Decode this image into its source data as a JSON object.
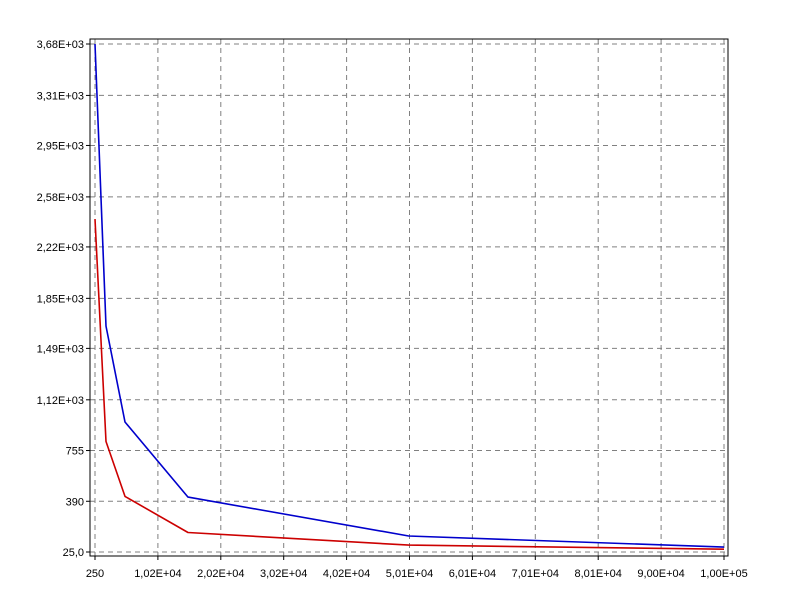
{
  "chart_data": {
    "type": "line",
    "title": "",
    "xlabel": "",
    "ylabel": "",
    "xlim": [
      250,
      100000
    ],
    "ylim": [
      25,
      3680
    ],
    "grid": true,
    "x_ticks": [
      {
        "value": 250,
        "label": "250"
      },
      {
        "value": 10225,
        "label": "1,02E+04"
      },
      {
        "value": 20200,
        "label": "2,02E+04"
      },
      {
        "value": 30175,
        "label": "3,02E+04"
      },
      {
        "value": 40150,
        "label": "4,02E+04"
      },
      {
        "value": 50125,
        "label": "5,01E+04"
      },
      {
        "value": 60100,
        "label": "6,01E+04"
      },
      {
        "value": 70075,
        "label": "7,01E+04"
      },
      {
        "value": 80050,
        "label": "8,01E+04"
      },
      {
        "value": 90025,
        "label": "9,00E+04"
      },
      {
        "value": 100000,
        "label": "1,00E+05"
      }
    ],
    "y_ticks": [
      {
        "value": 25,
        "label": "25,0"
      },
      {
        "value": 390,
        "label": "390"
      },
      {
        "value": 755,
        "label": "755"
      },
      {
        "value": 1120,
        "label": "1,12E+03"
      },
      {
        "value": 1490,
        "label": "1,49E+03"
      },
      {
        "value": 1850,
        "label": "1,85E+03"
      },
      {
        "value": 2220,
        "label": "2,22E+03"
      },
      {
        "value": 2580,
        "label": "2,58E+03"
      },
      {
        "value": 2950,
        "label": "2,95E+03"
      },
      {
        "value": 3310,
        "label": "3,31E+03"
      },
      {
        "value": 3680,
        "label": "3,68E+03"
      }
    ],
    "series": [
      {
        "color": "#0000cc",
        "x": [
          250,
          2000,
          5000,
          15000,
          50000,
          100000
        ],
        "y": [
          3680,
          1650,
          960,
          420,
          140,
          60
        ]
      },
      {
        "color": "#cc0000",
        "x": [
          250,
          2000,
          5000,
          15000,
          50000,
          100000
        ],
        "y": [
          2420,
          820,
          425,
          165,
          75,
          45
        ]
      }
    ]
  }
}
